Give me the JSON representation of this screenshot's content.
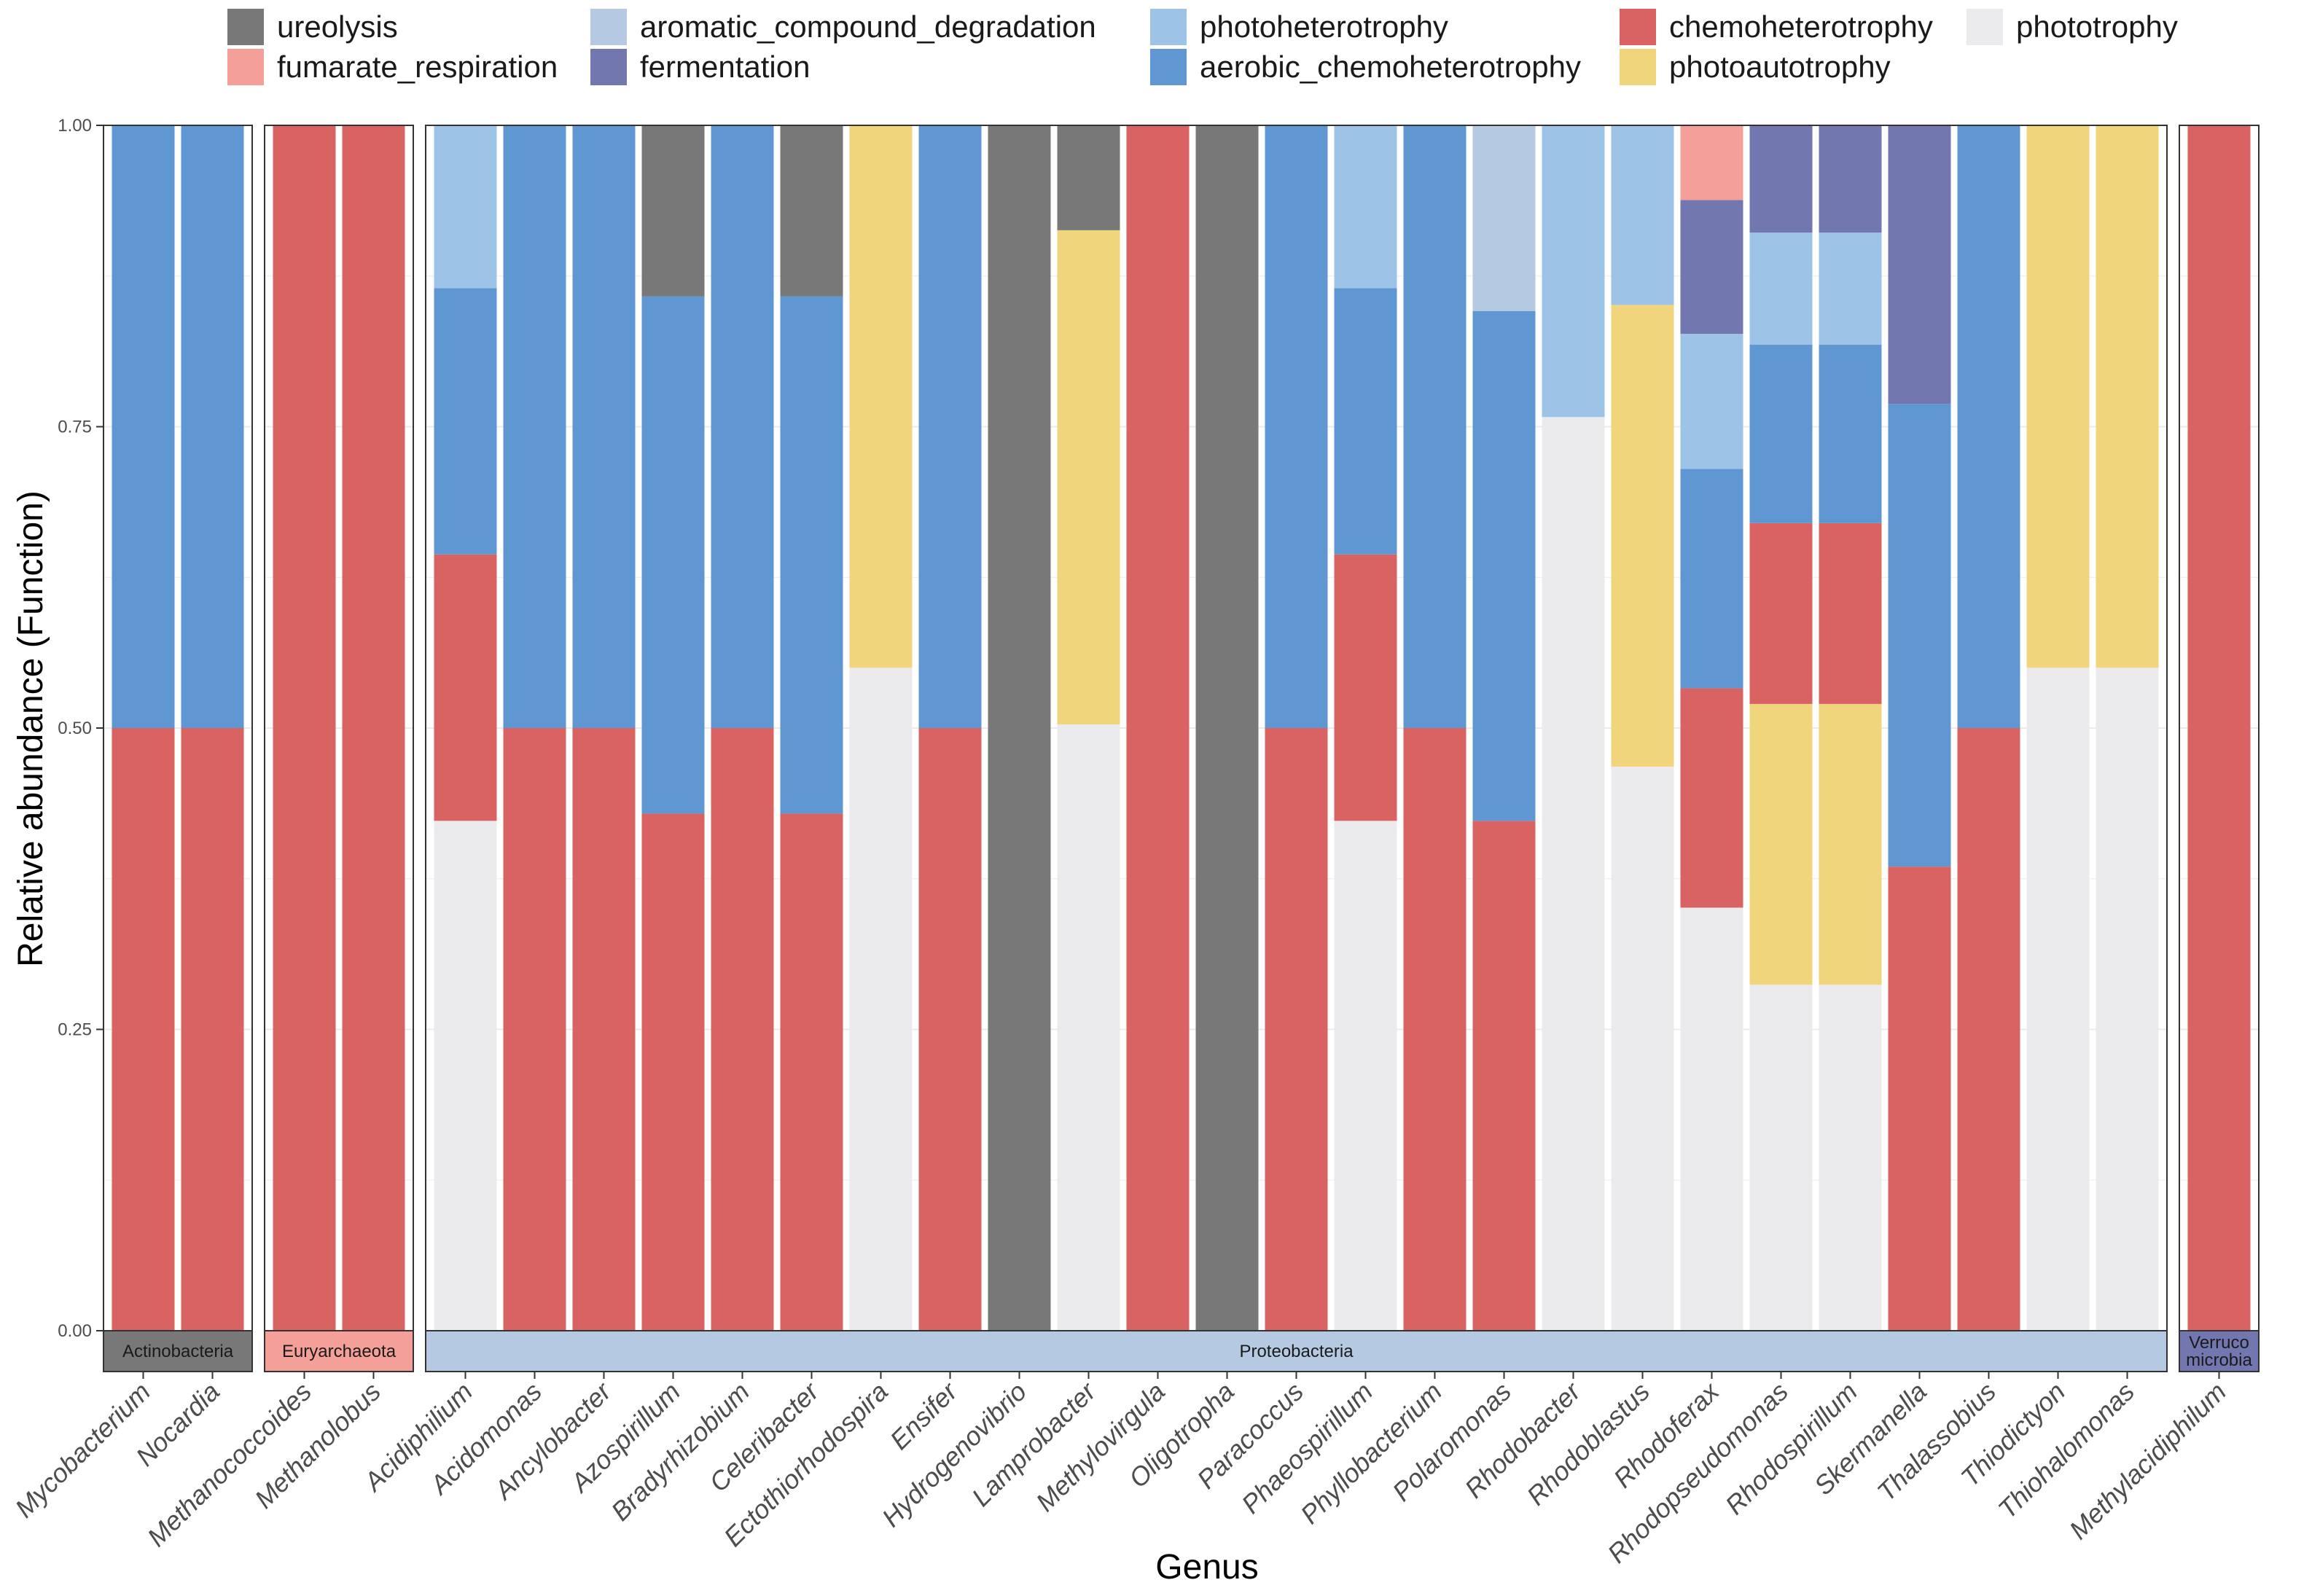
{
  "chart_data": {
    "type": "bar",
    "stacked": true,
    "faceted_by": "phylum",
    "xlabel": "Genus",
    "ylabel": "Relative abundance (Function)",
    "ylim": [
      0,
      1
    ],
    "yticks": [
      0,
      0.25,
      0.5,
      0.75,
      1
    ],
    "ytick_labels": [
      "0.00",
      "0.25",
      "0.50",
      "0.75",
      "1.00"
    ],
    "legend_position": "top",
    "legend": [
      {
        "key": "ureolysis",
        "label": "ureolysis",
        "color": "#787878"
      },
      {
        "key": "fumarate_respiration",
        "label": "fumarate_respiration",
        "color": "#F4A099"
      },
      {
        "key": "aromatic_compound_degradation",
        "label": "aromatic_compound_degradation",
        "color": "#B6C9E2"
      },
      {
        "key": "fermentation",
        "label": "fermentation",
        "color": "#7277B0"
      },
      {
        "key": "photoheterotrophy",
        "label": "photoheterotrophy",
        "color": "#9DC3E7"
      },
      {
        "key": "aerobic_chemoheterotrophy",
        "label": "aerobic_chemoheterotrophy",
        "color": "#5E97D1"
      },
      {
        "key": "chemoheterotrophy",
        "label": "chemoheterotrophy",
        "color": "#D96263"
      },
      {
        "key": "photoautotrophy",
        "label": "photoautotrophy",
        "color": "#F1D57D"
      },
      {
        "key": "phototrophy",
        "label": "phototrophy",
        "color": "#EBEBED"
      }
    ],
    "stack_order": [
      "phototrophy",
      "photoautotrophy",
      "chemoheterotrophy",
      "aerobic_chemoheterotrophy",
      "photoheterotrophy",
      "fermentation",
      "aromatic_compound_degradation",
      "fumarate_respiration",
      "ureolysis"
    ],
    "facets": [
      {
        "name": "Actinobacteria",
        "strip_lines": [
          "Actinobacteria"
        ],
        "strip_color": "#787878",
        "genera": [
          {
            "genus": "Mycobacterium",
            "values": {
              "chemoheterotrophy": 0.5,
              "aerobic_chemoheterotrophy": 0.5
            }
          },
          {
            "genus": "Nocardia",
            "values": {
              "chemoheterotrophy": 0.5,
              "aerobic_chemoheterotrophy": 0.5
            }
          }
        ]
      },
      {
        "name": "Euryarchaeota",
        "strip_lines": [
          "Euryarchaeota"
        ],
        "strip_color": "#F4A099",
        "genera": [
          {
            "genus": "Methanococcoides",
            "values": {
              "chemoheterotrophy": 1.0
            }
          },
          {
            "genus": "Methanolobus",
            "values": {
              "chemoheterotrophy": 1.0
            }
          }
        ]
      },
      {
        "name": "Proteobacteria",
        "strip_lines": [
          "Proteobacteria"
        ],
        "strip_color": "#B6C9E2",
        "genera": [
          {
            "genus": "Acidiphilium",
            "values": {
              "phototrophy": 0.423,
              "chemoheterotrophy": 0.221,
              "aerobic_chemoheterotrophy": 0.221,
              "photoheterotrophy": 0.135
            }
          },
          {
            "genus": "Acidomonas",
            "values": {
              "chemoheterotrophy": 0.5,
              "aerobic_chemoheterotrophy": 0.5
            }
          },
          {
            "genus": "Ancylobacter",
            "values": {
              "chemoheterotrophy": 0.5,
              "aerobic_chemoheterotrophy": 0.5
            }
          },
          {
            "genus": "Azospirillum",
            "values": {
              "chemoheterotrophy": 0.429,
              "aerobic_chemoheterotrophy": 0.429,
              "ureolysis": 0.142
            }
          },
          {
            "genus": "Bradyrhizobium",
            "values": {
              "chemoheterotrophy": 0.5,
              "aerobic_chemoheterotrophy": 0.5
            }
          },
          {
            "genus": "Celeribacter",
            "values": {
              "chemoheterotrophy": 0.429,
              "aerobic_chemoheterotrophy": 0.429,
              "ureolysis": 0.142
            }
          },
          {
            "genus": "Ectothiorhodospira",
            "values": {
              "phototrophy": 0.55,
              "photoautotrophy": 0.45
            }
          },
          {
            "genus": "Ensifer",
            "values": {
              "chemoheterotrophy": 0.5,
              "aerobic_chemoheterotrophy": 0.5
            }
          },
          {
            "genus": "Hydrogenovibrio",
            "values": {
              "ureolysis": 1.0
            }
          },
          {
            "genus": "Lamprobacter",
            "values": {
              "phototrophy": 0.503,
              "photoautotrophy": 0.41,
              "ureolysis": 0.087
            }
          },
          {
            "genus": "Methylovirgula",
            "values": {
              "chemoheterotrophy": 1.0
            }
          },
          {
            "genus": "Oligotropha",
            "values": {
              "ureolysis": 1.0
            }
          },
          {
            "genus": "Paracoccus",
            "values": {
              "chemoheterotrophy": 0.5,
              "aerobic_chemoheterotrophy": 0.5
            }
          },
          {
            "genus": "Phaeospirillum",
            "values": {
              "phototrophy": 0.423,
              "chemoheterotrophy": 0.221,
              "aerobic_chemoheterotrophy": 0.221,
              "photoheterotrophy": 0.135
            }
          },
          {
            "genus": "Phyllobacterium",
            "values": {
              "chemoheterotrophy": 0.5,
              "aerobic_chemoheterotrophy": 0.5
            }
          },
          {
            "genus": "Polaromonas",
            "values": {
              "chemoheterotrophy": 0.423,
              "aerobic_chemoheterotrophy": 0.423,
              "aromatic_compound_degradation": 0.154
            }
          },
          {
            "genus": "Rhodobacter",
            "values": {
              "phototrophy": 0.758,
              "photoheterotrophy": 0.242
            }
          },
          {
            "genus": "Rhodoblastus",
            "values": {
              "phototrophy": 0.468,
              "photoautotrophy": 0.383,
              "photoheterotrophy": 0.149
            }
          },
          {
            "genus": "Rhodoferax",
            "values": {
              "phototrophy": 0.351,
              "chemoheterotrophy": 0.182,
              "aerobic_chemoheterotrophy": 0.182,
              "photoheterotrophy": 0.112,
              "fermentation": 0.111,
              "fumarate_respiration": 0.062
            }
          },
          {
            "genus": "Rhodopseudomonas",
            "values": {
              "phototrophy": 0.287,
              "photoautotrophy": 0.233,
              "chemoheterotrophy": 0.15,
              "aerobic_chemoheterotrophy": 0.148,
              "photoheterotrophy": 0.093,
              "fermentation": 0.089
            }
          },
          {
            "genus": "Rhodospirillum",
            "values": {
              "phototrophy": 0.287,
              "photoautotrophy": 0.233,
              "chemoheterotrophy": 0.15,
              "aerobic_chemoheterotrophy": 0.148,
              "photoheterotrophy": 0.093,
              "fermentation": 0.089
            }
          },
          {
            "genus": "Skermanella",
            "values": {
              "chemoheterotrophy": 0.385,
              "aerobic_chemoheterotrophy": 0.384,
              "fermentation": 0.231
            }
          },
          {
            "genus": "Thalassobius",
            "values": {
              "chemoheterotrophy": 0.5,
              "aerobic_chemoheterotrophy": 0.5
            }
          },
          {
            "genus": "Thiodictyon",
            "values": {
              "phototrophy": 0.55,
              "photoautotrophy": 0.45
            }
          },
          {
            "genus": "Thiohalomonas",
            "values": {
              "phototrophy": 0.55,
              "photoautotrophy": 0.45
            }
          }
        ]
      },
      {
        "name": "Verrucomicrobia",
        "strip_lines": [
          "Verruco",
          "microbia"
        ],
        "strip_color": "#7277B0",
        "genera": [
          {
            "genus": "Methylacidiphilum",
            "values": {
              "chemoheterotrophy": 1.0
            }
          }
        ]
      }
    ]
  }
}
